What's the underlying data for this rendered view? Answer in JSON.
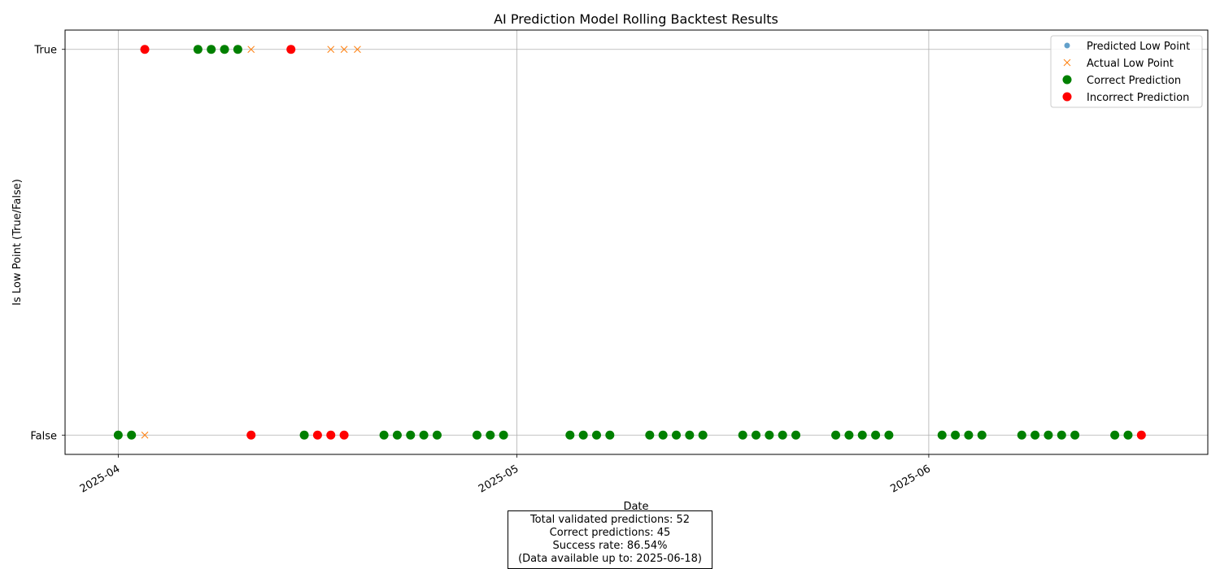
{
  "chart_data": {
    "type": "scatter",
    "title": "AI Prediction Model Rolling Backtest Results",
    "xlabel": "Date",
    "ylabel": "Is Low Point (True/False)",
    "y_tick_labels": [
      "False",
      "True"
    ],
    "x_tick_labels": [
      "2025-04",
      "2025-05",
      "2025-06"
    ],
    "x_ticks": [
      "2025-04-01",
      "2025-05-01",
      "2025-06-01"
    ],
    "x_range": [
      "2025-03-28",
      "2025-06-22"
    ],
    "y_range": [
      -0.05,
      1.05
    ],
    "grid": true,
    "legend_position": "top-right",
    "legend": [
      {
        "label": "Predicted Low Point",
        "marker": "circle-small",
        "color": "#1f77b4"
      },
      {
        "label": "Actual Low Point",
        "marker": "x",
        "color": "#ff7f0e"
      },
      {
        "label": "Correct Prediction",
        "marker": "circle",
        "color": "#008000"
      },
      {
        "label": "Incorrect Prediction",
        "marker": "circle",
        "color": "#ff0000"
      }
    ],
    "series": [
      {
        "name": "Actual Low Point",
        "color": "#ff7f0e",
        "marker": "x",
        "points": [
          [
            "2025-04-03",
            0
          ],
          [
            "2025-04-07",
            1
          ],
          [
            "2025-04-08",
            1
          ],
          [
            "2025-04-09",
            1
          ],
          [
            "2025-04-10",
            1
          ],
          [
            "2025-04-11",
            1
          ],
          [
            "2025-04-14",
            1
          ],
          [
            "2025-04-15",
            0
          ],
          [
            "2025-04-17",
            1
          ],
          [
            "2025-04-18",
            1
          ],
          [
            "2025-04-19",
            1
          ]
        ]
      },
      {
        "name": "Correct Prediction",
        "color": "#008000",
        "marker": "circle",
        "points": [
          [
            "2025-04-01",
            0
          ],
          [
            "2025-04-02",
            0
          ],
          [
            "2025-04-07",
            1
          ],
          [
            "2025-04-08",
            1
          ],
          [
            "2025-04-09",
            1
          ],
          [
            "2025-04-10",
            1
          ],
          [
            "2025-04-15",
            0
          ],
          [
            "2025-04-21",
            0
          ],
          [
            "2025-04-22",
            0
          ],
          [
            "2025-04-23",
            0
          ],
          [
            "2025-04-24",
            0
          ],
          [
            "2025-04-25",
            0
          ],
          [
            "2025-04-28",
            0
          ],
          [
            "2025-04-29",
            0
          ],
          [
            "2025-04-30",
            0
          ],
          [
            "2025-05-05",
            0
          ],
          [
            "2025-05-06",
            0
          ],
          [
            "2025-05-07",
            0
          ],
          [
            "2025-05-08",
            0
          ],
          [
            "2025-05-11",
            0
          ],
          [
            "2025-05-12",
            0
          ],
          [
            "2025-05-13",
            0
          ],
          [
            "2025-05-14",
            0
          ],
          [
            "2025-05-15",
            0
          ],
          [
            "2025-05-18",
            0
          ],
          [
            "2025-05-19",
            0
          ],
          [
            "2025-05-20",
            0
          ],
          [
            "2025-05-21",
            0
          ],
          [
            "2025-05-22",
            0
          ],
          [
            "2025-05-25",
            0
          ],
          [
            "2025-05-26",
            0
          ],
          [
            "2025-05-27",
            0
          ],
          [
            "2025-05-28",
            0
          ],
          [
            "2025-05-29",
            0
          ],
          [
            "2025-06-02",
            0
          ],
          [
            "2025-06-03",
            0
          ],
          [
            "2025-06-04",
            0
          ],
          [
            "2025-06-05",
            0
          ],
          [
            "2025-06-08",
            0
          ],
          [
            "2025-06-09",
            0
          ],
          [
            "2025-06-10",
            0
          ],
          [
            "2025-06-11",
            0
          ],
          [
            "2025-06-12",
            0
          ],
          [
            "2025-06-15",
            0
          ],
          [
            "2025-06-16",
            0
          ]
        ]
      },
      {
        "name": "Incorrect Prediction",
        "color": "#ff0000",
        "marker": "circle",
        "points": [
          [
            "2025-04-03",
            1
          ],
          [
            "2025-04-11",
            0
          ],
          [
            "2025-04-14",
            1
          ],
          [
            "2025-04-16",
            0
          ],
          [
            "2025-04-17",
            0
          ],
          [
            "2025-04-18",
            0
          ],
          [
            "2025-06-17",
            0
          ]
        ]
      }
    ]
  },
  "summary": {
    "total": "Total validated predictions: 52",
    "correct": "Correct predictions: 45",
    "rate": "Success rate: 86.54%",
    "data_until": "(Data available up to: 2025-06-18)"
  }
}
